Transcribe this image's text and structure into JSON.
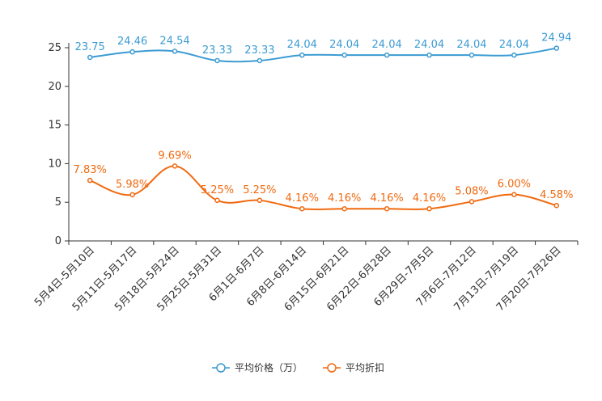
{
  "chart_data": {
    "type": "line",
    "categories": [
      "5月4日-5月10日",
      "5月11日-5月17日",
      "5月18日-5月24日",
      "5月25日-5月31日",
      "6月1日-6月7日",
      "6月8日-6月14日",
      "6月15日-6月21日",
      "6月22日-6月28日",
      "6月29日-7月5日",
      "7月6日-7月12日",
      "7月13日-7月19日",
      "7月20日-7月26日"
    ],
    "series": [
      {
        "name": "平均价格（万）",
        "color": "#3b9bd3",
        "values": [
          23.75,
          24.46,
          24.54,
          23.33,
          23.33,
          24.04,
          24.04,
          24.04,
          24.04,
          24.04,
          24.04,
          24.94
        ],
        "labels": [
          "23.75",
          "24.46",
          "24.54",
          "23.33",
          "23.33",
          "24.04",
          "24.04",
          "24.04",
          "24.04",
          "24.04",
          "24.04",
          "24.94"
        ]
      },
      {
        "name": "平均折扣",
        "color": "#f06a10",
        "values": [
          7.83,
          5.98,
          9.69,
          5.25,
          5.25,
          4.16,
          4.16,
          4.16,
          4.16,
          5.08,
          6.0,
          4.58
        ],
        "labels": [
          "7.83%",
          "5.98%",
          "9.69%",
          "5.25%",
          "5.25%",
          "4.16%",
          "4.16%",
          "4.16%",
          "4.16%",
          "5.08%",
          "6.00%",
          "4.58%"
        ]
      }
    ],
    "yticks": [
      0,
      5,
      10,
      15,
      20,
      25
    ],
    "ylim": [
      0,
      25
    ],
    "title": "",
    "xlabel": "",
    "ylabel": "",
    "legend": "bottom-center"
  }
}
